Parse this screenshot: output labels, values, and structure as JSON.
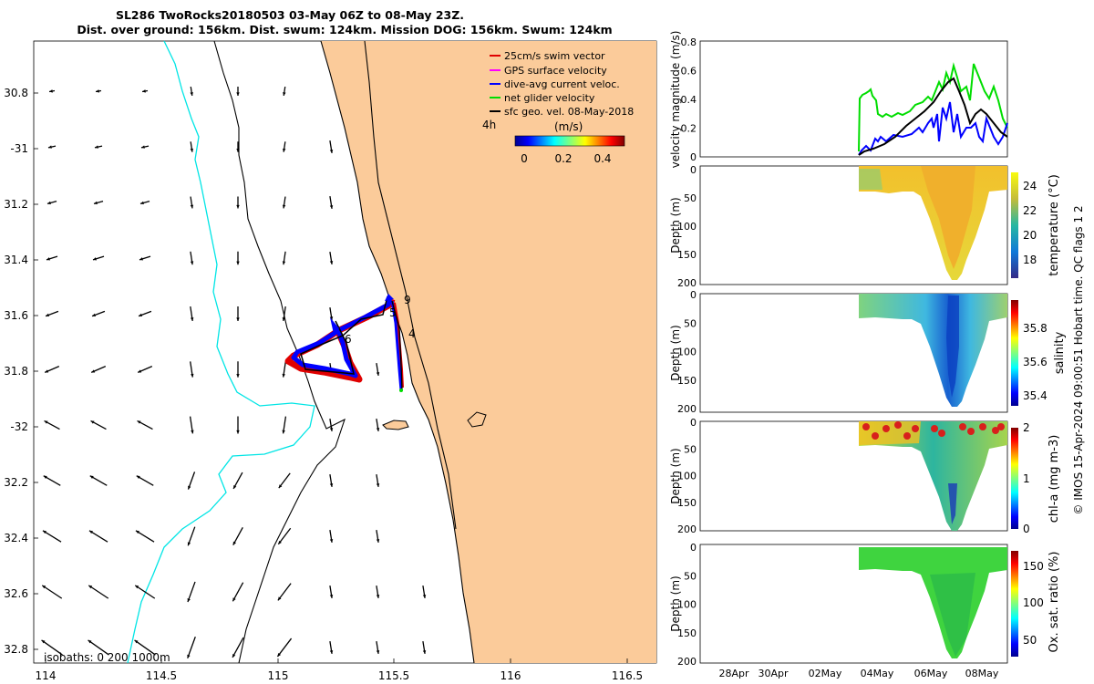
{
  "title_line1": "SL286 TwoRocks20180503 03-May 06Z to 08-May 23Z.",
  "title_line2": "Dist. over ground: 156km. Dist. swum: 124km. Mission DOG: 156km. Swum: 124km",
  "map": {
    "lon_ticks": [
      "114",
      "114.5",
      "115",
      "115.5",
      "116",
      "116.5"
    ],
    "lat_ticks": [
      "30.8",
      "-31",
      "31.2",
      "31.4",
      "31.6",
      "31.8",
      "-32",
      "32.2",
      "32.4",
      "32.6",
      "32.8"
    ],
    "legend": [
      {
        "label": "25cm/s swim vector",
        "color": "#e00000"
      },
      {
        "label": "GPS surface velocity",
        "color": "#ff00ff"
      },
      {
        "label": "dive-avg current veloc.",
        "color": "#0000ff"
      },
      {
        "label": "net glider velocity",
        "color": "#00dd00"
      },
      {
        "label": "sfc geo. vel. 08-May-2018",
        "color": "#000000"
      }
    ],
    "time_label": "4h",
    "colorbar_unit": "(m/s)",
    "colorbar_ticks": [
      "0",
      "0.2",
      "0.4"
    ],
    "isobaths_label": "isobaths: 0   200  1000m",
    "track_labels": [
      "9",
      "5",
      "4",
      "6"
    ],
    "land_color": "#fbcb9a",
    "isobath_200_color": "#00e5e5"
  },
  "panels": {
    "velocity": {
      "ylabel": "velocity magnitude (m/s)",
      "yticks": [
        "0",
        "0.2",
        "0.4",
        "0.6",
        "0.8"
      ],
      "series": [
        {
          "name": "net glider velocity",
          "color": "#00dd00"
        },
        {
          "name": "dive-avg current veloc.",
          "color": "#0000ff"
        },
        {
          "name": "sfc geo. vel.",
          "color": "#000000"
        }
      ]
    },
    "depth_ylabel": "Depth (m)",
    "depth_yticks": [
      "0",
      "50",
      "100",
      "150",
      "200"
    ],
    "temperature": {
      "label": "temperature (°C)",
      "ticks": [
        "18",
        "20",
        "22",
        "24"
      ]
    },
    "salinity": {
      "label": "salinity",
      "ticks": [
        "35.4",
        "35.6",
        "35.8"
      ]
    },
    "chla": {
      "label": "chl-a (mg m-3)",
      "ticks": [
        "0",
        "1",
        "2"
      ]
    },
    "oxygen": {
      "label": "Ox. sat. ratio (%)",
      "ticks": [
        "50",
        "100",
        "150"
      ]
    },
    "date_ticks": [
      "28Apr",
      "30Apr",
      "02May",
      "04May",
      "06May",
      "08May"
    ]
  },
  "footer": "© IMOS 15-Apr-2024 09:00:51 Hobart time. QC flags 1  2"
}
